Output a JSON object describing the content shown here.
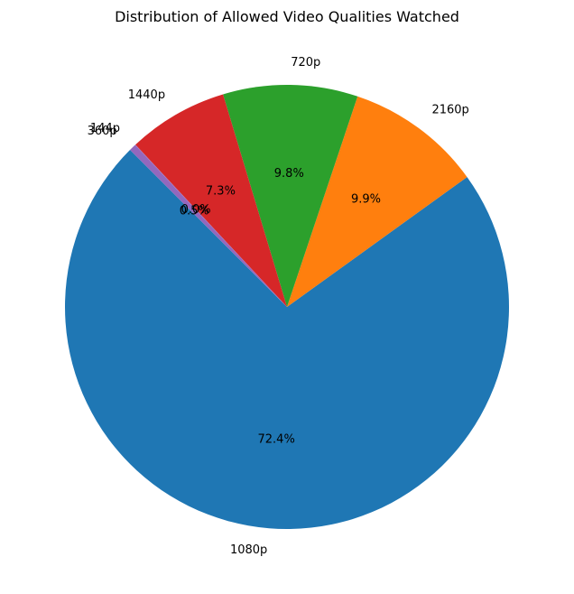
{
  "chart_data": {
    "type": "pie",
    "title": "Distribution of Allowed Video Qualities Watched",
    "start_angle_deg": 135,
    "direction": "counterclockwise",
    "slices": [
      {
        "label": "1080p",
        "value": 72.4,
        "pct_label": "72.4%",
        "color": "#1f77b4"
      },
      {
        "label": "2160p",
        "value": 9.9,
        "pct_label": "9.9%",
        "color": "#ff7f0e"
      },
      {
        "label": "720p",
        "value": 9.8,
        "pct_label": "9.8%",
        "color": "#2ca02c"
      },
      {
        "label": "1440p",
        "value": 7.3,
        "pct_label": "7.3%",
        "color": "#d62728"
      },
      {
        "label": "144p",
        "value": 0.04,
        "pct_label": "0.0%",
        "color": "#9467bd"
      },
      {
        "label": "360p",
        "value": 0.5,
        "pct_label": "0.5%",
        "color": "#9467bd"
      }
    ]
  }
}
